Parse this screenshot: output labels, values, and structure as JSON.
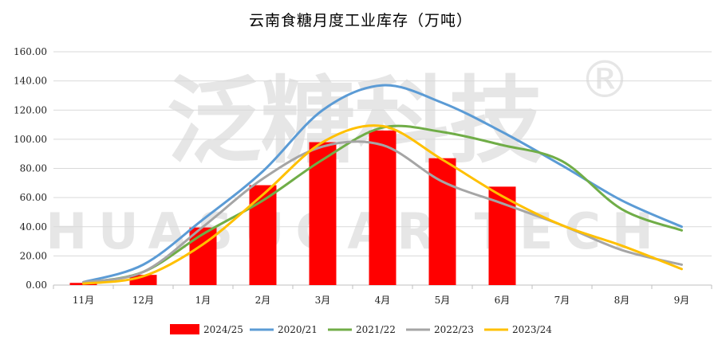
{
  "chart_data": {
    "type": "bar",
    "title": "云南食糖月度工业库存（万吨）",
    "watermark": {
      "text": "泛糖科技",
      "subtext": "HUASUGAR TECH",
      "mark": "®"
    },
    "categories": [
      "11月",
      "12月",
      "1月",
      "2月",
      "3月",
      "4月",
      "5月",
      "6月",
      "7月",
      "8月",
      "9月"
    ],
    "ylim": [
      0,
      160
    ],
    "yticks": [
      "0.00",
      "20.00",
      "40.00",
      "60.00",
      "80.00",
      "100.00",
      "120.00",
      "140.00",
      "160.00"
    ],
    "grid": true,
    "legend_position": "bottom",
    "bar_series": {
      "name": "2024/25",
      "color": "#ff0000",
      "values": [
        1.5,
        7,
        39.5,
        68.5,
        98,
        106,
        87,
        67.5,
        null,
        null,
        null
      ]
    },
    "line_series": [
      {
        "name": "2020/21",
        "color": "#5b9bd5",
        "values": [
          2,
          14,
          45,
          78,
          120,
          137,
          125,
          105,
          82,
          58,
          40
        ]
      },
      {
        "name": "2021/22",
        "color": "#70ad47",
        "values": [
          1.5,
          9,
          35,
          58,
          86,
          108,
          105,
          96,
          85,
          52,
          37.5
        ]
      },
      {
        "name": "2022/23",
        "color": "#a5a5a5",
        "values": [
          2,
          9,
          40,
          73,
          95,
          96,
          71,
          56,
          41,
          24,
          14
        ]
      },
      {
        "name": "2023/24",
        "color": "#ffc000",
        "values": [
          1,
          6,
          28,
          62,
          98,
          109,
          86,
          61,
          41,
          27,
          11
        ]
      }
    ]
  }
}
